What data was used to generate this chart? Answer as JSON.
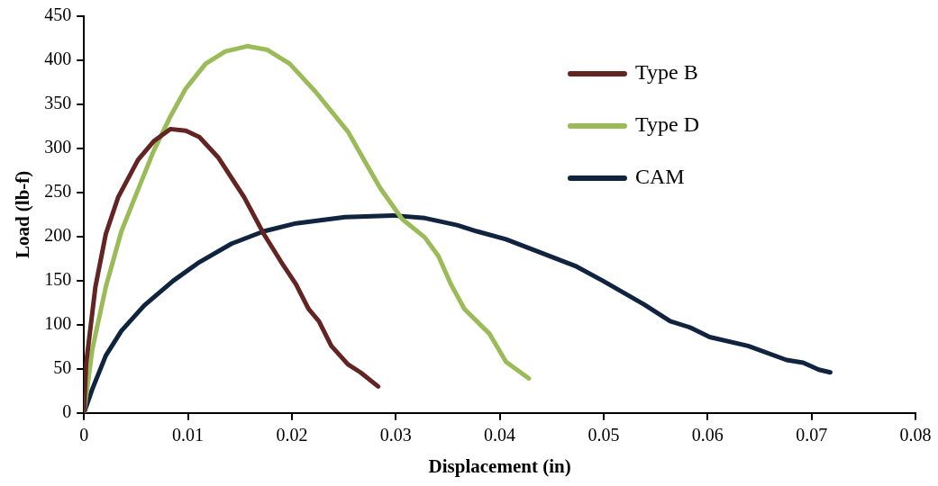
{
  "chart_data": {
    "type": "line",
    "xlabel": "Displacement (in)",
    "ylabel": "Load (lb-f)",
    "xlim": [
      0,
      0.08
    ],
    "xticks": [
      0,
      0.01,
      0.02,
      0.03,
      0.04,
      0.05,
      0.06,
      0.07,
      0.08
    ],
    "ylim": [
      0,
      450
    ],
    "yticks": [
      0,
      50,
      100,
      150,
      200,
      250,
      300,
      350,
      400,
      450
    ],
    "grid": false,
    "legend": "top right",
    "marker": "none",
    "line_style": "solid",
    "series": [
      {
        "name": "Type B",
        "color": "#632523",
        "x": [
          0,
          0.0002,
          0.0011,
          0.0021,
          0.0033,
          0.0052,
          0.0067,
          0.0083,
          0.0098,
          0.0111,
          0.0129,
          0.0154,
          0.0173,
          0.0192,
          0.0204,
          0.0216,
          0.0226,
          0.0238,
          0.0254,
          0.0266,
          0.0283
        ],
        "values": [
          0,
          55,
          143,
          203,
          245,
          287,
          308,
          322,
          320,
          313,
          290,
          245,
          203,
          167,
          146,
          118,
          104,
          76,
          55,
          46,
          30
        ]
      },
      {
        "name": "Type D",
        "color": "#9bbb59",
        "x": [
          0,
          0.0008,
          0.0021,
          0.0036,
          0.0055,
          0.0067,
          0.0083,
          0.0098,
          0.0117,
          0.0136,
          0.0157,
          0.0176,
          0.0198,
          0.0223,
          0.0254,
          0.0266,
          0.0285,
          0.0306,
          0.0328,
          0.0341,
          0.0353,
          0.0366,
          0.039,
          0.0397,
          0.0406,
          0.0428
        ],
        "values": [
          0,
          72,
          143,
          206,
          262,
          297,
          336,
          368,
          396,
          410,
          416,
          412,
          396,
          364,
          319,
          294,
          255,
          220,
          199,
          178,
          146,
          118,
          90,
          76,
          58,
          39
        ]
      },
      {
        "name": "CAM",
        "color": "#10243f",
        "x": [
          0,
          0.0008,
          0.0021,
          0.0036,
          0.0058,
          0.0086,
          0.0111,
          0.0142,
          0.0173,
          0.0204,
          0.0251,
          0.0297,
          0.0328,
          0.0359,
          0.0378,
          0.0406,
          0.0437,
          0.0474,
          0.0499,
          0.0539,
          0.0564,
          0.0583,
          0.0602,
          0.0639,
          0.0676,
          0.0692,
          0.0707,
          0.0718
        ],
        "values": [
          0,
          27,
          65,
          93,
          122,
          150,
          171,
          192,
          206,
          215,
          222,
          224,
          221,
          213,
          206,
          197,
          183,
          166,
          150,
          123,
          104,
          97,
          86,
          76,
          60,
          57,
          49,
          46
        ]
      }
    ]
  }
}
